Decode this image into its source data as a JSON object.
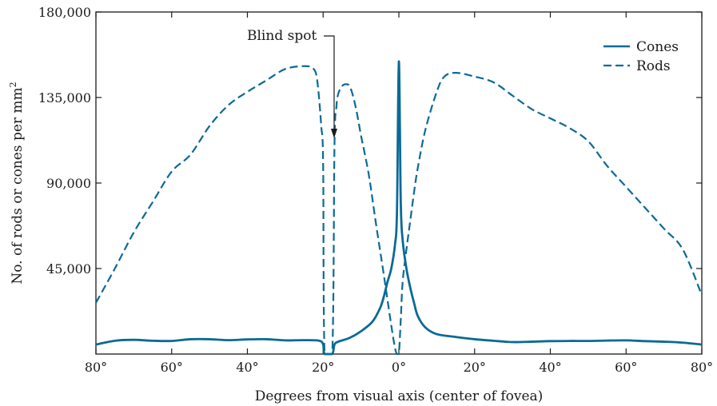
{
  "chart_data": {
    "type": "line",
    "xlabel": "Degrees from visual axis (center of fovea)",
    "ylabel": "No. of rods or cones per mm",
    "ylabel_superscript": "2",
    "x_tick_labels": [
      "80°",
      "60°",
      "40°",
      "20°",
      "0°",
      "20°",
      "40°",
      "60°",
      "80°"
    ],
    "y_tick_labels": [
      "45,000",
      "90,000",
      "135,000",
      "180,000"
    ],
    "xlim": [
      -80,
      80
    ],
    "ylim": [
      0,
      180000
    ],
    "grid": false,
    "legend_position": "top-right",
    "annotation": "Blind spot",
    "series": [
      {
        "name": "Cones",
        "style": "solid",
        "color": "#0a6a96",
        "x": [
          -80,
          -75,
          -70,
          -65,
          -60,
          -55,
          -50,
          -45,
          -40,
          -35,
          -30,
          -25,
          -21,
          -20,
          -19.6,
          -17.6,
          -17,
          -16,
          -13,
          -10,
          -7,
          -5,
          -4,
          -3,
          -2,
          -1,
          -0.5,
          0,
          0.5,
          1,
          2,
          3,
          4,
          5,
          7,
          10,
          15,
          20,
          25,
          30,
          35,
          40,
          45,
          50,
          55,
          60,
          65,
          70,
          75,
          80
        ],
        "y": [
          5000,
          7000,
          7500,
          7000,
          6900,
          7800,
          7800,
          7300,
          7700,
          7800,
          7200,
          7300,
          7000,
          5000,
          0,
          0,
          5000,
          6500,
          8500,
          12000,
          17000,
          24000,
          30000,
          38000,
          45000,
          58000,
          75000,
          154000,
          80000,
          60000,
          45000,
          35000,
          27000,
          20000,
          14000,
          10500,
          9000,
          7800,
          7000,
          6300,
          6500,
          6800,
          6900,
          6900,
          7100,
          7200,
          6800,
          6500,
          6000,
          5000
        ]
      },
      {
        "name": "Rods",
        "style": "dashed",
        "color": "#0a6a96",
        "x": [
          -80,
          -75,
          -70,
          -65,
          -60,
          -55,
          -50,
          -45,
          -40,
          -35,
          -30,
          -25,
          -22.5,
          -21.5,
          -20.5,
          -20,
          -19.6,
          -17.6,
          -17,
          -16.5,
          -16,
          -15,
          -14,
          -13,
          -12,
          -11,
          -10,
          -8,
          -6,
          -4,
          -2,
          -1,
          -0.5,
          0,
          0.5,
          1,
          2,
          3,
          4,
          5,
          7,
          10,
          12,
          15,
          20,
          25,
          30,
          35,
          40,
          45,
          50,
          55,
          60,
          65,
          70,
          75,
          80
        ],
        "y": [
          27000,
          45000,
          64000,
          80000,
          96000,
          105000,
          120000,
          131000,
          138000,
          144000,
          150000,
          151500,
          150000,
          143000,
          120000,
          100000,
          0,
          0,
          110000,
          130000,
          137000,
          141000,
          142000,
          141000,
          135000,
          126000,
          115000,
          95000,
          68000,
          42000,
          15000,
          3000,
          0,
          0,
          18000,
          38000,
          55000,
          70000,
          85000,
          98000,
          118000,
          138000,
          146000,
          148000,
          146000,
          143000,
          136000,
          129000,
          124000,
          119000,
          112000,
          99000,
          88000,
          77000,
          66000,
          55000,
          31000
        ]
      }
    ]
  }
}
